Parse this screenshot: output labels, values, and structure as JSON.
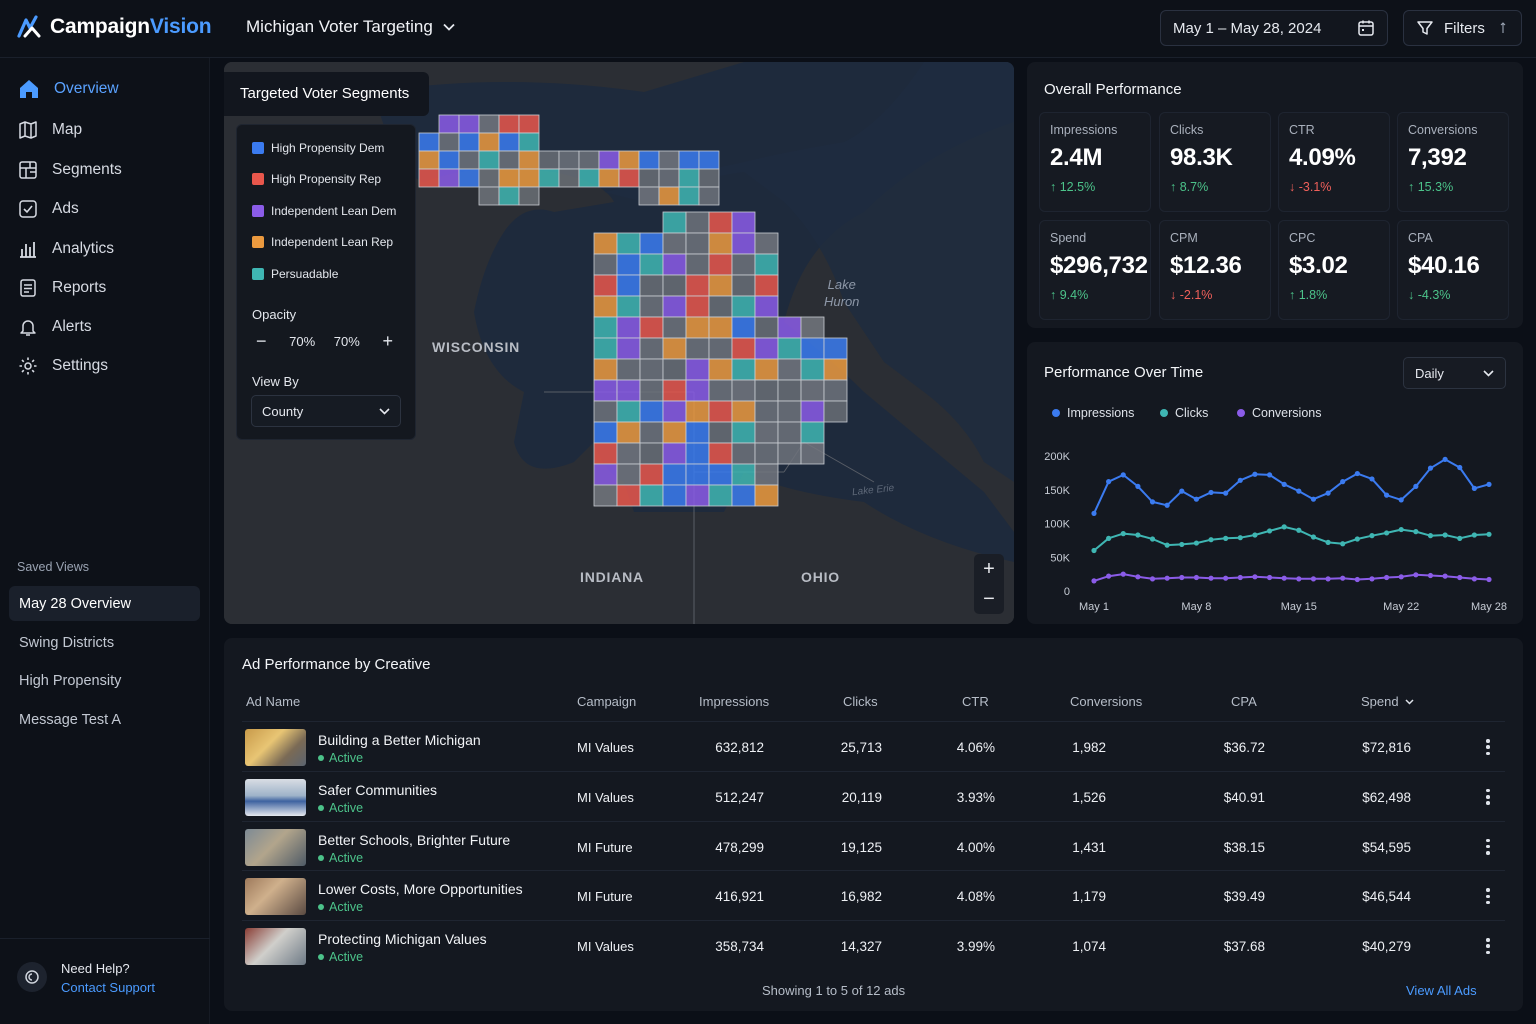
{
  "app": {
    "brand_main": "Campaign",
    "brand_accent": "Vision",
    "project": "Michigan Voter Targeting"
  },
  "topbar": {
    "date_range": "May 1 – May 28, 2024",
    "filters_label": "Filters"
  },
  "sidebar": {
    "items": [
      {
        "label": "Overview",
        "icon": "home-icon"
      },
      {
        "label": "Map",
        "icon": "map-icon"
      },
      {
        "label": "Segments",
        "icon": "segments-icon"
      },
      {
        "label": "Ads",
        "icon": "ads-icon"
      },
      {
        "label": "Analytics",
        "icon": "analytics-icon"
      },
      {
        "label": "Reports",
        "icon": "reports-icon"
      },
      {
        "label": "Alerts",
        "icon": "bell-icon"
      },
      {
        "label": "Settings",
        "icon": "gear-icon"
      }
    ],
    "saved_title": "Saved Views",
    "saved": [
      "May 28 Overview",
      "Swing Districts",
      "High Propensity",
      "Message Test A"
    ],
    "help_title": "Need Help?",
    "help_link": "Contact Support"
  },
  "map": {
    "title": "Targeted Voter Segments",
    "legend": [
      {
        "label": "High Propensity Dem",
        "color": "#3b7bf0"
      },
      {
        "label": "High Propensity Rep",
        "color": "#e9574c"
      },
      {
        "label": "Independent Lean Dem",
        "color": "#8b5ce8"
      },
      {
        "label": "Independent Lean Rep",
        "color": "#ec9a3f"
      },
      {
        "label": "Persuadable",
        "color": "#3fb6b3"
      }
    ],
    "opacity_label": "Opacity",
    "opacity_value_a": "70%",
    "opacity_value_b": "70%",
    "view_by_label": "View By",
    "view_by_value": "County",
    "labels": {
      "wisconsin": "WISCONSIN",
      "indiana": "INDIANA",
      "ohio": "OHIO",
      "lake_huron_1": "Lake",
      "lake_huron_2": "Huron",
      "lake_erie": "Lake Erie"
    }
  },
  "overall": {
    "title": "Overall Performance",
    "kpis": [
      {
        "label": "Impressions",
        "value": "2.4M",
        "delta": "12.5%",
        "dir": "up"
      },
      {
        "label": "Clicks",
        "value": "98.3K",
        "delta": "8.7%",
        "dir": "up"
      },
      {
        "label": "CTR",
        "value": "4.09%",
        "delta": "-3.1%",
        "dir": "down"
      },
      {
        "label": "Conversions",
        "value": "7,392",
        "delta": "15.3%",
        "dir": "up"
      },
      {
        "label": "Spend",
        "value": "$296,732",
        "delta": "9.4%",
        "dir": "up"
      },
      {
        "label": "CPM",
        "value": "$12.36",
        "delta": "-2.1%",
        "dir": "down"
      },
      {
        "label": "CPC",
        "value": "$3.02",
        "delta": "1.8%",
        "dir": "up"
      },
      {
        "label": "CPA",
        "value": "$40.16",
        "delta": "-4.3%",
        "dir": "up"
      }
    ]
  },
  "timechart": {
    "title": "Performance Over Time",
    "granularity": "Daily",
    "legend": [
      "Impressions",
      "Clicks",
      "Conversions"
    ]
  },
  "chart_data": {
    "type": "line",
    "x": [
      "May 1",
      "May 2",
      "May 3",
      "May 4",
      "May 5",
      "May 6",
      "May 7",
      "May 8",
      "May 9",
      "May 10",
      "May 11",
      "May 12",
      "May 13",
      "May 14",
      "May 15",
      "May 16",
      "May 17",
      "May 18",
      "May 19",
      "May 20",
      "May 21",
      "May 22",
      "May 23",
      "May 24",
      "May 25",
      "May 26",
      "May 27",
      "May 28"
    ],
    "x_ticks": [
      "May 1",
      "May 8",
      "May 15",
      "May 22",
      "May 28"
    ],
    "y_ticks": [
      "200K",
      "150K",
      "100K",
      "50K",
      "0"
    ],
    "ylim": [
      0,
      200000
    ],
    "grid": false,
    "legend_position": "top-left",
    "series": [
      {
        "name": "Impressions",
        "color": "#3b7bf0",
        "values": [
          115000,
          162000,
          172000,
          155000,
          132000,
          127000,
          148000,
          136000,
          146000,
          145000,
          164000,
          173000,
          172000,
          158000,
          148000,
          136000,
          145000,
          162000,
          174000,
          166000,
          142000,
          135000,
          155000,
          182000,
          195000,
          183000,
          152000,
          158000
        ]
      },
      {
        "name": "Clicks",
        "color": "#3fb6b3",
        "values": [
          60000,
          78000,
          85000,
          83000,
          77000,
          68000,
          69000,
          71000,
          76000,
          78000,
          79000,
          83000,
          89000,
          95000,
          90000,
          80000,
          72000,
          70000,
          77000,
          82000,
          86000,
          91000,
          88000,
          82000,
          83000,
          78000,
          83000,
          84000
        ]
      },
      {
        "name": "Conversions",
        "color": "#8b5ce8",
        "values": [
          15000,
          22000,
          25000,
          21000,
          18000,
          19000,
          20000,
          20000,
          19000,
          19000,
          20000,
          21000,
          20000,
          19000,
          18000,
          18000,
          18000,
          19000,
          17000,
          18000,
          20000,
          21000,
          24000,
          23000,
          22000,
          20000,
          18000,
          17000
        ]
      }
    ]
  },
  "table": {
    "title": "Ad Performance by Creative",
    "headers": {
      "ad_name": "Ad Name",
      "campaign": "Campaign",
      "impressions": "Impressions",
      "clicks": "Clicks",
      "ctr": "CTR",
      "conversions": "Conversions",
      "cpa": "CPA",
      "spend": "Spend"
    },
    "rows": [
      {
        "name": "Building a Better Michigan",
        "status": "Active",
        "campaign": "MI Values",
        "impressions": "632,812",
        "clicks": "25,713",
        "ctr": "4.06%",
        "conversions": "1,982",
        "cpa": "$36.72",
        "spend": "$72,816"
      },
      {
        "name": "Safer Communities",
        "status": "Active",
        "campaign": "MI Values",
        "impressions": "512,247",
        "clicks": "20,119",
        "ctr": "3.93%",
        "conversions": "1,526",
        "cpa": "$40.91",
        "spend": "$62,498"
      },
      {
        "name": "Better Schools, Brighter Future",
        "status": "Active",
        "campaign": "MI Future",
        "impressions": "478,299",
        "clicks": "19,125",
        "ctr": "4.00%",
        "conversions": "1,431",
        "cpa": "$38.15",
        "spend": "$54,595"
      },
      {
        "name": "Lower Costs, More Opportunities",
        "status": "Active",
        "campaign": "MI Future",
        "impressions": "416,921",
        "clicks": "16,982",
        "ctr": "4.08%",
        "conversions": "1,179",
        "cpa": "$39.49",
        "spend": "$46,544"
      },
      {
        "name": "Protecting Michigan Values",
        "status": "Active",
        "campaign": "MI Values",
        "impressions": "358,734",
        "clicks": "14,327",
        "ctr": "3.99%",
        "conversions": "1,074",
        "cpa": "$37.68",
        "spend": "$40,279"
      }
    ],
    "showing": "Showing 1 to 5 of 12 ads",
    "view_all": "View All Ads"
  }
}
